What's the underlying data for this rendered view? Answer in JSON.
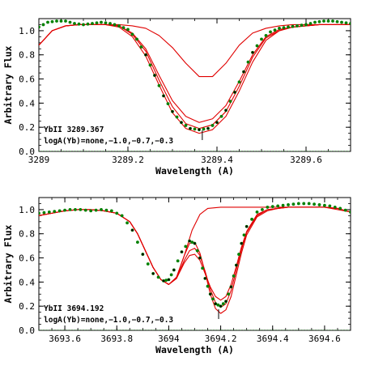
{
  "chart_data": [
    {
      "type": "line",
      "xlabel": "Wavelength (A)",
      "ylabel": "Arbitrary Flux",
      "xlim": [
        3289.0,
        3289.7
      ],
      "ylim": [
        0.0,
        1.1
      ],
      "x_ticks": [
        3289,
        3289.2,
        3289.4,
        3289.6
      ],
      "x_tick_labels": [
        "3289",
        "3289.2",
        "3289.4",
        "3289.6"
      ],
      "y_ticks": [
        0.0,
        0.2,
        0.4,
        0.6,
        0.8,
        1.0
      ],
      "y_tick_labels": [
        "0.0",
        "0.2",
        "0.4",
        "0.6",
        "0.8",
        "1.0"
      ],
      "annotations": [
        "YbII 3289.367",
        "logA(Yb)=none,−1.0,−0.7,−0.3"
      ],
      "line_marker_x": 3289.367,
      "observed_color": "#008000",
      "model_color": "#e00000",
      "observed": {
        "x": [
          3289.0,
          3289.02,
          3289.04,
          3289.06,
          3289.08,
          3289.1,
          3289.12,
          3289.14,
          3289.16,
          3289.18,
          3289.2,
          3289.22,
          3289.24,
          3289.26,
          3289.28,
          3289.3,
          3289.32,
          3289.34,
          3289.36,
          3289.38,
          3289.4,
          3289.42,
          3289.44,
          3289.46,
          3289.48,
          3289.5,
          3289.52,
          3289.54,
          3289.56,
          3289.58,
          3289.6,
          3289.62,
          3289.64,
          3289.66,
          3289.68,
          3289.7
        ],
        "y": [
          1.03,
          1.07,
          1.08,
          1.08,
          1.06,
          1.05,
          1.06,
          1.07,
          1.06,
          1.04,
          1.01,
          0.93,
          0.8,
          0.63,
          0.46,
          0.33,
          0.24,
          0.19,
          0.18,
          0.19,
          0.24,
          0.34,
          0.49,
          0.66,
          0.82,
          0.93,
          0.99,
          1.02,
          1.03,
          1.04,
          1.05,
          1.07,
          1.08,
          1.08,
          1.07,
          1.06
        ]
      },
      "models": [
        {
          "name": "none",
          "x": [
            3289.0,
            3289.03,
            3289.06,
            3289.09,
            3289.12,
            3289.15,
            3289.18,
            3289.21,
            3289.24,
            3289.27,
            3289.3,
            3289.33,
            3289.36,
            3289.39,
            3289.42,
            3289.45,
            3289.48,
            3289.51,
            3289.54,
            3289.57,
            3289.6,
            3289.63,
            3289.66,
            3289.7
          ],
          "y": [
            0.88,
            1.0,
            1.04,
            1.05,
            1.05,
            1.05,
            1.05,
            1.04,
            1.02,
            0.96,
            0.86,
            0.73,
            0.62,
            0.62,
            0.73,
            0.88,
            0.98,
            1.02,
            1.04,
            1.05,
            1.05,
            1.05,
            1.05,
            1.05
          ]
        },
        {
          "name": "-1.0",
          "x": [
            3289.0,
            3289.03,
            3289.06,
            3289.09,
            3289.12,
            3289.15,
            3289.18,
            3289.21,
            3289.24,
            3289.27,
            3289.3,
            3289.33,
            3289.36,
            3289.39,
            3289.42,
            3289.45,
            3289.48,
            3289.51,
            3289.54,
            3289.57,
            3289.6,
            3289.63,
            3289.66,
            3289.7
          ],
          "y": [
            0.88,
            1.0,
            1.04,
            1.05,
            1.05,
            1.05,
            1.04,
            0.98,
            0.85,
            0.63,
            0.42,
            0.29,
            0.24,
            0.27,
            0.38,
            0.58,
            0.8,
            0.95,
            1.01,
            1.03,
            1.04,
            1.05,
            1.05,
            1.05
          ]
        },
        {
          "name": "-0.7",
          "x": [
            3289.0,
            3289.03,
            3289.06,
            3289.09,
            3289.12,
            3289.15,
            3289.18,
            3289.21,
            3289.24,
            3289.27,
            3289.3,
            3289.33,
            3289.36,
            3289.39,
            3289.42,
            3289.45,
            3289.48,
            3289.51,
            3289.54,
            3289.57,
            3289.6,
            3289.63,
            3289.66,
            3289.7
          ],
          "y": [
            0.88,
            1.0,
            1.04,
            1.05,
            1.05,
            1.05,
            1.04,
            0.97,
            0.83,
            0.59,
            0.37,
            0.23,
            0.19,
            0.22,
            0.33,
            0.54,
            0.78,
            0.94,
            1.0,
            1.03,
            1.04,
            1.05,
            1.05,
            1.05
          ]
        },
        {
          "name": "-0.3",
          "x": [
            3289.0,
            3289.03,
            3289.06,
            3289.09,
            3289.12,
            3289.15,
            3289.18,
            3289.21,
            3289.24,
            3289.27,
            3289.3,
            3289.33,
            3289.36,
            3289.39,
            3289.42,
            3289.45,
            3289.48,
            3289.51,
            3289.54,
            3289.57,
            3289.6,
            3289.63,
            3289.66,
            3289.7
          ],
          "y": [
            0.88,
            1.0,
            1.04,
            1.05,
            1.05,
            1.05,
            1.03,
            0.95,
            0.79,
            0.55,
            0.32,
            0.19,
            0.15,
            0.18,
            0.29,
            0.5,
            0.74,
            0.92,
            1.0,
            1.03,
            1.04,
            1.05,
            1.05,
            1.05
          ]
        }
      ]
    },
    {
      "type": "line",
      "xlabel": "Wavelength (A)",
      "ylabel": "Arbitrary Flux",
      "xlim": [
        3693.5,
        3694.7
      ],
      "ylim": [
        0.0,
        1.1
      ],
      "x_ticks": [
        3693.6,
        3693.8,
        3694.0,
        3694.2,
        3694.4,
        3694.6
      ],
      "x_tick_labels": [
        "3693.6",
        "3693.8",
        "3694",
        "3694.2",
        "3694.4",
        "3694.6"
      ],
      "y_ticks": [
        0.0,
        0.2,
        0.4,
        0.6,
        0.8,
        1.0
      ],
      "y_tick_labels": [
        "0.0",
        "0.2",
        "0.4",
        "0.6",
        "0.8",
        "1.0"
      ],
      "annotations": [
        "YbII 3694.192",
        "logA(Yb)=none,−1.0,−0.7,−0.3"
      ],
      "line_marker_x": 3694.192,
      "observed_color": "#008000",
      "model_color": "#e00000",
      "observed": {
        "x": [
          3693.5,
          3693.54,
          3693.58,
          3693.62,
          3693.66,
          3693.7,
          3693.74,
          3693.78,
          3693.82,
          3693.86,
          3693.9,
          3693.94,
          3693.98,
          3694.0,
          3694.02,
          3694.05,
          3694.08,
          3694.1,
          3694.12,
          3694.14,
          3694.16,
          3694.18,
          3694.2,
          3694.22,
          3694.24,
          3694.26,
          3694.28,
          3694.3,
          3694.34,
          3694.38,
          3694.42,
          3694.46,
          3694.5,
          3694.54,
          3694.58,
          3694.62,
          3694.66,
          3694.7
        ],
        "y": [
          0.97,
          0.98,
          0.99,
          1.0,
          1.0,
          0.99,
          1.0,
          0.99,
          0.95,
          0.83,
          0.63,
          0.47,
          0.41,
          0.42,
          0.5,
          0.65,
          0.74,
          0.72,
          0.6,
          0.43,
          0.3,
          0.22,
          0.2,
          0.24,
          0.36,
          0.54,
          0.72,
          0.86,
          0.98,
          1.02,
          1.03,
          1.04,
          1.05,
          1.05,
          1.04,
          1.03,
          1.01,
          0.98
        ]
      },
      "models": [
        {
          "name": "none",
          "x": [
            3693.5,
            3693.55,
            3693.6,
            3693.65,
            3693.7,
            3693.75,
            3693.8,
            3693.85,
            3693.88,
            3693.91,
            3693.94,
            3693.97,
            3694.0,
            3694.03,
            3694.06,
            3694.09,
            3694.12,
            3694.15,
            3694.2,
            3694.3,
            3694.4,
            3694.5,
            3694.6,
            3694.7
          ],
          "y": [
            0.95,
            0.97,
            0.99,
            1.0,
            1.0,
            0.99,
            0.97,
            0.9,
            0.8,
            0.66,
            0.52,
            0.42,
            0.38,
            0.44,
            0.62,
            0.83,
            0.96,
            1.01,
            1.02,
            1.02,
            1.02,
            1.02,
            1.02,
            0.98
          ]
        },
        {
          "name": "-1.0",
          "x": [
            3693.5,
            3693.55,
            3693.6,
            3693.65,
            3693.7,
            3693.75,
            3693.8,
            3693.85,
            3693.88,
            3693.91,
            3693.94,
            3693.97,
            3694.0,
            3694.03,
            3694.06,
            3694.08,
            3694.1,
            3694.12,
            3694.14,
            3694.16,
            3694.18,
            3694.2,
            3694.22,
            3694.24,
            3694.26,
            3694.28,
            3694.3,
            3694.34,
            3694.38,
            3694.42,
            3694.46,
            3694.5,
            3694.55,
            3694.6,
            3694.65,
            3694.7
          ],
          "y": [
            0.95,
            0.97,
            0.99,
            1.0,
            1.0,
            0.99,
            0.97,
            0.9,
            0.8,
            0.66,
            0.52,
            0.42,
            0.38,
            0.43,
            0.56,
            0.62,
            0.63,
            0.58,
            0.47,
            0.36,
            0.28,
            0.25,
            0.28,
            0.38,
            0.53,
            0.69,
            0.82,
            0.96,
            1.0,
            1.01,
            1.02,
            1.02,
            1.02,
            1.02,
            1.01,
            0.98
          ]
        },
        {
          "name": "-0.7",
          "x": [
            3693.5,
            3693.55,
            3693.6,
            3693.65,
            3693.7,
            3693.75,
            3693.8,
            3693.85,
            3693.88,
            3693.91,
            3693.94,
            3693.97,
            3694.0,
            3694.03,
            3694.06,
            3694.08,
            3694.1,
            3694.12,
            3694.14,
            3694.16,
            3694.18,
            3694.2,
            3694.22,
            3694.24,
            3694.26,
            3694.28,
            3694.3,
            3694.34,
            3694.38,
            3694.42,
            3694.46,
            3694.5,
            3694.55,
            3694.6,
            3694.65,
            3694.7
          ],
          "y": [
            0.95,
            0.97,
            0.99,
            1.0,
            1.0,
            0.99,
            0.97,
            0.9,
            0.8,
            0.66,
            0.52,
            0.42,
            0.38,
            0.43,
            0.58,
            0.66,
            0.68,
            0.62,
            0.49,
            0.34,
            0.23,
            0.19,
            0.22,
            0.33,
            0.5,
            0.67,
            0.81,
            0.95,
            1.0,
            1.01,
            1.02,
            1.02,
            1.02,
            1.02,
            1.01,
            0.98
          ]
        },
        {
          "name": "-0.3",
          "x": [
            3693.5,
            3693.55,
            3693.6,
            3693.65,
            3693.7,
            3693.75,
            3693.8,
            3693.85,
            3693.88,
            3693.91,
            3693.94,
            3693.97,
            3694.0,
            3694.03,
            3694.06,
            3694.08,
            3694.1,
            3694.12,
            3694.14,
            3694.16,
            3694.18,
            3694.2,
            3694.22,
            3694.24,
            3694.26,
            3694.28,
            3694.3,
            3694.34,
            3694.38,
            3694.42,
            3694.46,
            3694.5,
            3694.55,
            3694.6,
            3694.65,
            3694.7
          ],
          "y": [
            0.95,
            0.97,
            0.99,
            1.0,
            1.0,
            0.99,
            0.97,
            0.9,
            0.8,
            0.66,
            0.52,
            0.42,
            0.38,
            0.44,
            0.62,
            0.72,
            0.73,
            0.64,
            0.48,
            0.3,
            0.18,
            0.14,
            0.17,
            0.28,
            0.46,
            0.64,
            0.79,
            0.94,
            0.99,
            1.01,
            1.02,
            1.02,
            1.02,
            1.02,
            1.01,
            0.98
          ]
        }
      ]
    }
  ]
}
